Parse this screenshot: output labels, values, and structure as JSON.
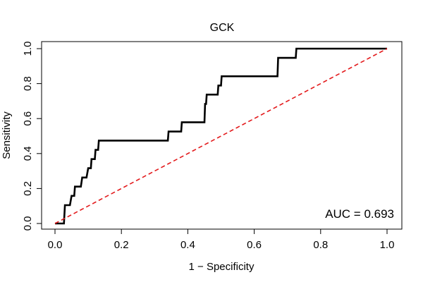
{
  "chart_data": {
    "type": "line",
    "title": "GCK",
    "xlabel": "1 − Specificity",
    "ylabel": "Sensitivity",
    "xlim": [
      0,
      1
    ],
    "ylim": [
      0,
      1
    ],
    "x_ticks": [
      "0.0",
      "0.2",
      "0.4",
      "0.6",
      "0.8",
      "1.0"
    ],
    "y_ticks": [
      "0.0",
      "0.2",
      "0.4",
      "0.6",
      "0.8",
      "1.0"
    ],
    "grid": false,
    "annotation": "AUC = 0.693",
    "series": [
      {
        "style": "solid",
        "color": "#000000",
        "points": [
          [
            0.0,
            0.0
          ],
          [
            0.027,
            0.0
          ],
          [
            0.03,
            0.105
          ],
          [
            0.045,
            0.105
          ],
          [
            0.05,
            0.158
          ],
          [
            0.058,
            0.158
          ],
          [
            0.06,
            0.211
          ],
          [
            0.078,
            0.211
          ],
          [
            0.082,
            0.263
          ],
          [
            0.095,
            0.263
          ],
          [
            0.1,
            0.316
          ],
          [
            0.108,
            0.316
          ],
          [
            0.11,
            0.368
          ],
          [
            0.12,
            0.368
          ],
          [
            0.122,
            0.421
          ],
          [
            0.13,
            0.421
          ],
          [
            0.132,
            0.474
          ],
          [
            0.34,
            0.474
          ],
          [
            0.342,
            0.526
          ],
          [
            0.38,
            0.526
          ],
          [
            0.382,
            0.579
          ],
          [
            0.45,
            0.579
          ],
          [
            0.452,
            0.684
          ],
          [
            0.455,
            0.684
          ],
          [
            0.457,
            0.737
          ],
          [
            0.49,
            0.737
          ],
          [
            0.492,
            0.789
          ],
          [
            0.5,
            0.789
          ],
          [
            0.502,
            0.842
          ],
          [
            0.67,
            0.842
          ],
          [
            0.672,
            0.947
          ],
          [
            0.725,
            0.947
          ],
          [
            0.727,
            1.0
          ],
          [
            1.0,
            1.0
          ]
        ]
      },
      {
        "style": "dashed",
        "color": "#e31a1c",
        "points": [
          [
            0.0,
            0.0
          ],
          [
            1.0,
            1.0
          ]
        ]
      }
    ]
  }
}
